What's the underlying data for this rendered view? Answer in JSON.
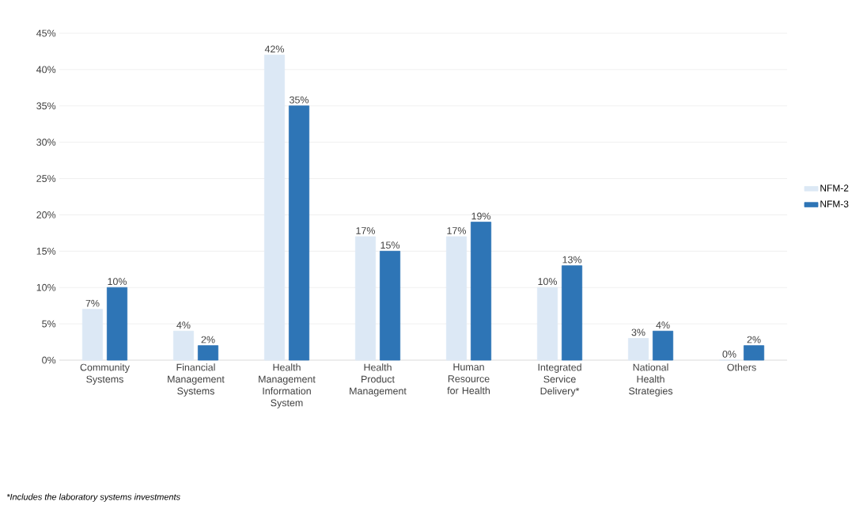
{
  "chart_data": {
    "type": "bar",
    "categories": [
      "Community Systems",
      "Financial Management Systems",
      "Health Management Information System",
      "Health Product Management",
      "Human Resource for Health",
      "Integrated Service Delivery*",
      "National Health Strategies",
      "Others"
    ],
    "series": [
      {
        "name": "NFM-2",
        "color": "#dce8f5",
        "values": [
          7,
          4,
          42,
          17,
          17,
          10,
          3,
          0
        ],
        "value_labels": [
          "7%",
          "4%",
          "42%",
          "17%",
          "17%",
          "10%",
          "3%",
          "0%"
        ]
      },
      {
        "name": "NFM-3",
        "color": "#2e75b6",
        "values": [
          10,
          2,
          35,
          15,
          19,
          13,
          4,
          2
        ],
        "value_labels": [
          "10%",
          "2%",
          "35%",
          "15%",
          "19%",
          "13%",
          "4%",
          "2%"
        ]
      }
    ],
    "ylim": [
      0,
      45
    ],
    "yticks": [
      {
        "value": 0,
        "label": "0%"
      },
      {
        "value": 5,
        "label": "5%"
      },
      {
        "value": 10,
        "label": "10%"
      },
      {
        "value": 15,
        "label": "15%"
      },
      {
        "value": 20,
        "label": "20%"
      },
      {
        "value": 25,
        "label": "25%"
      },
      {
        "value": 30,
        "label": "30%"
      },
      {
        "value": 35,
        "label": "35%"
      },
      {
        "value": 40,
        "label": "40%"
      },
      {
        "value": 45,
        "label": "45%"
      }
    ],
    "grid": "y",
    "legend": "right",
    "annotations": [
      "*Includes the laboratory systems investments"
    ]
  }
}
